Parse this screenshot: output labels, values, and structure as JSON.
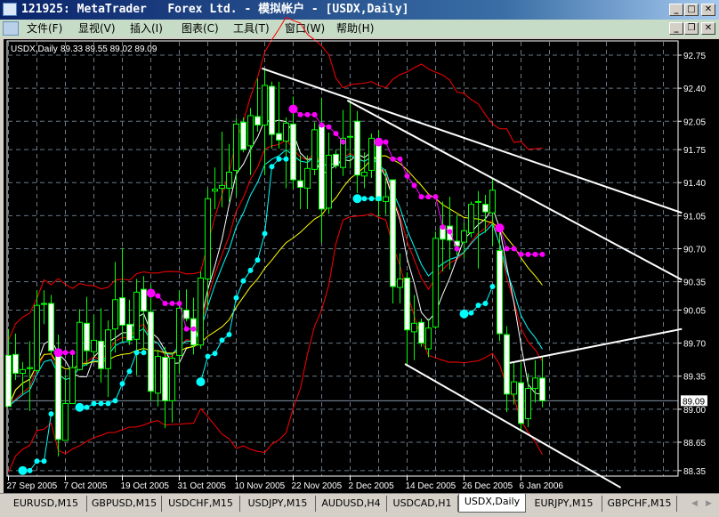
{
  "window": {
    "title": "121925: MetaTrader   Forex Ltd. - 模拟帐户 - [USDX,Daily]",
    "controls": [
      "minimize",
      "maximize",
      "close"
    ]
  },
  "menu": {
    "items": [
      "文件(F)",
      "显视(V)",
      "插入(I)",
      "图表(C)",
      "工具(T)",
      "窗口(W)",
      "帮助(H)"
    ],
    "child_controls": [
      "minimize",
      "restore",
      "close"
    ]
  },
  "chart_header": {
    "symbol": "USDX,Daily",
    "ohlc": "89.33 89.55 89.02 89.09"
  },
  "chart_data": {
    "type": "candlestick",
    "symbol": "USDX",
    "timeframe": "Daily",
    "grid": true,
    "colors": {
      "background": "#000000",
      "candle_outline": "#00ff00",
      "bull_body": "#000000",
      "bear_body": "#ffffff",
      "grid": "#6a7888",
      "bands": "#ff0000",
      "fast_ma": "#ffffff",
      "mid_ma": "#00ffff",
      "slow_ma": "#ffff00",
      "sar_down": "#ff00ff",
      "sar_up": "#00ffff",
      "trendline": "#ffffff"
    },
    "y_tick_labels": [
      "92.75",
      "92.40",
      "92.05",
      "91.75",
      "91.40",
      "91.05",
      "90.70",
      "90.35",
      "90.05",
      "89.70",
      "89.35",
      "89.00",
      "88.65",
      "88.35"
    ],
    "ylim": [
      88.35,
      92.75
    ],
    "current_price": "89.09",
    "x_tick_labels": [
      "27 Sep 2005",
      "7 Oct 2005",
      "19 Oct 2005",
      "31 Oct 2005",
      "10 Nov 2005",
      "22 Nov 2005",
      "2 Dec 2005",
      "14 Dec 2005",
      "26 Dec 2005",
      "6 Jan 2006"
    ],
    "candles": [
      [
        89.57,
        89.85,
        89.03,
        89.03
      ],
      [
        89.58,
        89.8,
        89.31,
        89.38
      ],
      [
        89.38,
        89.5,
        89.16,
        89.42
      ],
      [
        89.43,
        89.72,
        88.98,
        89.44
      ],
      [
        89.41,
        90.26,
        89.39,
        90.1
      ],
      [
        90.12,
        90.26,
        89.9,
        90.11
      ],
      [
        90.12,
        90.21,
        89.58,
        89.62
      ],
      [
        89.61,
        89.79,
        88.5,
        88.68
      ],
      [
        88.67,
        89.36,
        88.67,
        89.06
      ],
      [
        89.06,
        89.63,
        89.06,
        89.44
      ],
      [
        89.42,
        90.06,
        89.41,
        89.92
      ],
      [
        89.91,
        90.19,
        89.46,
        89.62
      ],
      [
        89.61,
        90.0,
        89.55,
        89.73
      ],
      [
        89.72,
        90.07,
        89.28,
        89.43
      ],
      [
        89.43,
        89.94,
        89.13,
        89.84
      ],
      [
        89.85,
        90.56,
        89.6,
        90.16
      ],
      [
        90.18,
        90.71,
        89.71,
        89.89
      ],
      [
        89.9,
        90.16,
        89.68,
        89.73
      ],
      [
        89.74,
        90.38,
        89.36,
        90.24
      ],
      [
        90.27,
        90.41,
        89.6,
        90.04
      ],
      [
        90.03,
        90.32,
        89.09,
        89.19
      ],
      [
        89.17,
        89.63,
        89.03,
        89.56
      ],
      [
        89.55,
        89.66,
        88.8,
        89.09
      ],
      [
        89.09,
        89.6,
        88.86,
        89.54
      ],
      [
        89.57,
        90.26,
        89.38,
        90.07
      ],
      [
        90.05,
        90.27,
        89.93,
        89.96
      ],
      [
        89.96,
        90.18,
        89.58,
        89.68
      ],
      [
        89.68,
        90.46,
        89.64,
        90.39
      ],
      [
        90.38,
        91.34,
        90.07,
        91.23
      ],
      [
        91.31,
        91.56,
        91.12,
        91.33
      ],
      [
        91.34,
        91.94,
        91.14,
        91.37
      ],
      [
        91.34,
        91.81,
        91.2,
        91.51
      ],
      [
        91.53,
        92.08,
        91.26,
        92.02
      ],
      [
        92.04,
        92.09,
        91.72,
        91.75
      ],
      [
        91.79,
        92.19,
        91.48,
        92.11
      ],
      [
        92.1,
        92.5,
        91.94,
        92.01
      ],
      [
        92.01,
        92.6,
        91.48,
        92.43
      ],
      [
        92.42,
        92.47,
        91.76,
        91.91
      ],
      [
        91.92,
        92.47,
        91.76,
        91.85
      ],
      [
        91.84,
        92.09,
        91.34,
        92.03
      ],
      [
        92.02,
        92.31,
        91.34,
        91.43
      ],
      [
        91.42,
        91.69,
        91.12,
        91.35
      ],
      [
        91.34,
        91.69,
        91.12,
        91.55
      ],
      [
        91.54,
        92.04,
        91.48,
        91.96
      ],
      [
        92.01,
        92.3,
        90.76,
        91.12
      ],
      [
        91.13,
        91.93,
        91.07,
        91.69
      ],
      [
        91.7,
        91.75,
        91.55,
        91.58
      ],
      [
        91.56,
        92.17,
        91.47,
        91.87
      ],
      [
        91.89,
        92.27,
        91.55,
        91.89
      ],
      [
        92.05,
        92.16,
        91.29,
        91.48
      ],
      [
        91.47,
        91.72,
        91.34,
        91.51
      ],
      [
        91.53,
        91.92,
        91.45,
        91.87
      ],
      [
        91.83,
        91.96,
        91.04,
        91.21
      ],
      [
        91.2,
        91.54,
        91.06,
        91.25
      ],
      [
        91.43,
        91.43,
        90.12,
        90.3
      ],
      [
        90.29,
        90.65,
        90.12,
        90.38
      ],
      [
        90.39,
        90.45,
        89.47,
        89.84
      ],
      [
        89.82,
        90.21,
        89.52,
        89.91
      ],
      [
        89.92,
        89.96,
        89.66,
        89.7
      ],
      [
        89.64,
        89.96,
        89.55,
        89.86
      ],
      [
        89.87,
        90.88,
        89.85,
        90.81
      ],
      [
        90.94,
        91.2,
        90.46,
        90.8
      ],
      [
        90.94,
        91.25,
        90.48,
        90.79
      ],
      [
        90.78,
        91.06,
        90.63,
        90.73
      ],
      [
        90.77,
        90.98,
        90.6,
        90.89
      ],
      [
        90.87,
        91.2,
        90.82,
        91.17
      ],
      [
        91.2,
        91.31,
        90.49,
        91.2
      ],
      [
        91.17,
        91.27,
        90.87,
        91.09
      ],
      [
        91.08,
        91.45,
        90.73,
        91.32
      ],
      [
        90.68,
        90.88,
        89.72,
        89.8
      ],
      [
        89.79,
        89.88,
        88.97,
        89.16
      ],
      [
        89.16,
        89.49,
        89.05,
        89.29
      ],
      [
        89.28,
        89.49,
        88.76,
        88.85
      ],
      [
        88.9,
        89.38,
        88.81,
        89.22
      ],
      [
        89.22,
        89.52,
        89.07,
        89.33
      ],
      [
        89.33,
        89.55,
        89.02,
        89.09
      ]
    ],
    "candle_format": [
      "open",
      "high",
      "low",
      "close"
    ],
    "sar_down_dots": [
      [
        7,
        89.6
      ],
      [
        8,
        89.6
      ],
      [
        9,
        89.6
      ],
      [
        20,
        90.23
      ],
      [
        21,
        90.2
      ],
      [
        22,
        90.12
      ],
      [
        23,
        90.12
      ],
      [
        24,
        90.12
      ],
      [
        25,
        89.85
      ],
      [
        26,
        89.85
      ],
      [
        40,
        92.18
      ],
      [
        41,
        92.12
      ],
      [
        42,
        92.12
      ],
      [
        43,
        92.12
      ],
      [
        44,
        92.01
      ],
      [
        45,
        91.99
      ],
      [
        46,
        91.92
      ],
      [
        47,
        91.83
      ],
      [
        52,
        91.83
      ],
      [
        53,
        91.83
      ],
      [
        54,
        91.65
      ],
      [
        55,
        91.65
      ],
      [
        56,
        91.47
      ],
      [
        57,
        91.37
      ],
      [
        58,
        91.25
      ],
      [
        59,
        91.25
      ],
      [
        60,
        91.25
      ],
      [
        61,
        90.93
      ],
      [
        62,
        90.88
      ],
      [
        63,
        90.7
      ],
      [
        69,
        90.92
      ],
      [
        70,
        90.7
      ],
      [
        71,
        90.7
      ],
      [
        72,
        90.64
      ],
      [
        73,
        90.64
      ],
      [
        74,
        90.64
      ],
      [
        75,
        90.64
      ]
    ],
    "sar_up_dots": [
      [
        2,
        88.35
      ],
      [
        3,
        88.35
      ],
      [
        4,
        88.45
      ],
      [
        5,
        88.45
      ],
      [
        6,
        88.95
      ],
      [
        10,
        89.02
      ],
      [
        11,
        89.02
      ],
      [
        12,
        89.06
      ],
      [
        13,
        89.06
      ],
      [
        14,
        89.06
      ],
      [
        15,
        89.09
      ],
      [
        16,
        89.27
      ],
      [
        17,
        89.4
      ],
      [
        18,
        89.6
      ],
      [
        19,
        89.6
      ],
      [
        27,
        89.29
      ],
      [
        28,
        89.56
      ],
      [
        29,
        89.59
      ],
      [
        30,
        89.73
      ],
      [
        31,
        89.79
      ],
      [
        32,
        90.18
      ],
      [
        33,
        90.36
      ],
      [
        34,
        90.47
      ],
      [
        35,
        90.58
      ],
      [
        36,
        90.86
      ],
      [
        37,
        91.57
      ],
      [
        38,
        91.65
      ],
      [
        39,
        91.65
      ],
      [
        49,
        91.23
      ],
      [
        50,
        91.23
      ],
      [
        51,
        91.23
      ],
      [
        52,
        91.23
      ],
      [
        64,
        90.01
      ],
      [
        65,
        90.02
      ],
      [
        66,
        90.1
      ],
      [
        67,
        90.12
      ],
      [
        68,
        90.3
      ]
    ],
    "trendlines": [
      [
        [
          35.6,
          92.61
        ],
        [
          94.6,
          91.08
        ]
      ],
      [
        [
          47.6,
          92.27
        ],
        [
          94.6,
          90.37
        ]
      ],
      [
        [
          55.7,
          89.48
        ],
        [
          86.0,
          88.17
        ]
      ],
      [
        [
          70.4,
          89.49
        ],
        [
          94.6,
          89.85
        ]
      ]
    ]
  },
  "tabs": {
    "items": [
      "EURUSD,M15",
      "GBPUSD,M15",
      "USDCHF,M15",
      "USDJPY,M15",
      "AUDUSD,H4",
      "USDCAD,H1",
      "USDX,Daily",
      "EURJPY,M15",
      "GBPCHF,M15"
    ],
    "active": "USDX,Daily"
  }
}
